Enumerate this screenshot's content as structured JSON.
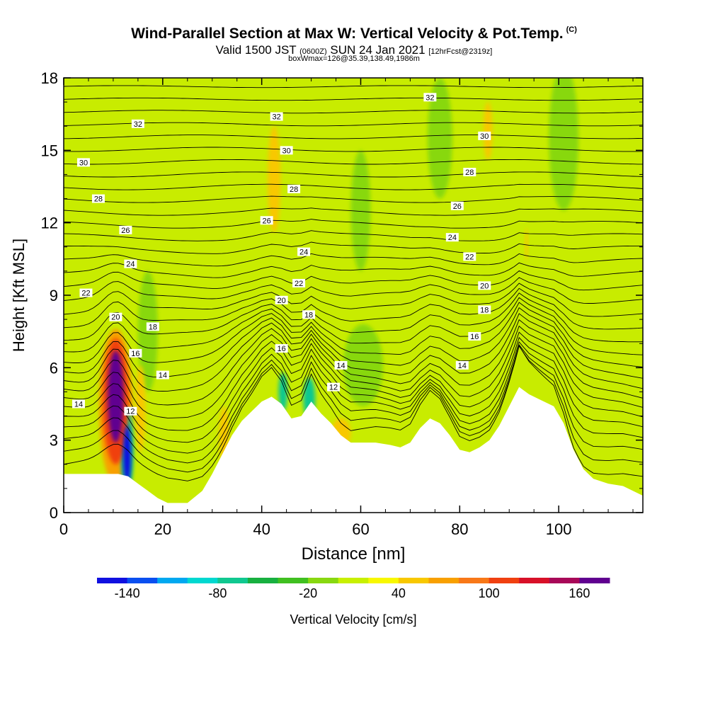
{
  "title": "Wind-Parallel Section at Max W: Vertical Velocity & Pot.Temp.",
  "title_mark": "(C)",
  "subtitle": {
    "valid": "Valid 1500 JST",
    "utc": "(0600Z)",
    "date": "SUN 24 Jan 2021",
    "fcst": "[12hrFcst@2319z]"
  },
  "subtitle2": "boxWmax=126@35.39,138.49,1986m",
  "chart_data": {
    "type": "heatmap",
    "xlabel": "Distance [nm]",
    "ylabel": "Height [Kft MSL]",
    "xlim": [
      0,
      117
    ],
    "ylim": [
      0,
      18
    ],
    "xticks": [
      0,
      20,
      40,
      60,
      80,
      100
    ],
    "yticks": [
      0,
      3,
      6,
      9,
      12,
      15,
      18
    ],
    "colorbar": {
      "label": "Vertical Velocity [cm/s]",
      "tick_labels": [
        "-140",
        "-80",
        "-20",
        "40",
        "100",
        "160"
      ],
      "tick_values": [
        -140,
        -80,
        -20,
        40,
        100,
        160
      ],
      "range": [
        -160,
        180
      ],
      "step": 20,
      "colors": [
        "#1010e0",
        "#0a4ff0",
        "#00a8f0",
        "#00d8d0",
        "#10c890",
        "#18b040",
        "#40c020",
        "#88d810",
        "#c8f000",
        "#f8f800",
        "#f8c800",
        "#f8a000",
        "#f87818",
        "#f04010",
        "#d81028",
        "#a80858",
        "#600090"
      ]
    },
    "background_color": "#c8ec00",
    "terrain": [
      [
        0,
        1.6
      ],
      [
        4,
        1.6
      ],
      [
        8,
        1.6
      ],
      [
        11,
        1.6
      ],
      [
        13,
        1.5
      ],
      [
        15,
        1.2
      ],
      [
        17,
        0.9
      ],
      [
        19,
        0.6
      ],
      [
        21,
        0.4
      ],
      [
        25,
        0.4
      ],
      [
        28,
        0.9
      ],
      [
        30,
        1.6
      ],
      [
        32,
        2.4
      ],
      [
        34,
        3.2
      ],
      [
        36,
        3.8
      ],
      [
        38,
        4.2
      ],
      [
        40,
        4.6
      ],
      [
        42,
        4.8
      ],
      [
        44,
        4.5
      ],
      [
        46,
        3.9
      ],
      [
        48,
        4.0
      ],
      [
        50,
        4.6
      ],
      [
        52,
        4.1
      ],
      [
        54,
        3.7
      ],
      [
        56,
        3.2
      ],
      [
        58,
        2.9
      ],
      [
        60,
        2.9
      ],
      [
        63,
        2.9
      ],
      [
        66,
        2.8
      ],
      [
        68,
        2.7
      ],
      [
        70,
        2.9
      ],
      [
        72,
        3.5
      ],
      [
        74,
        3.9
      ],
      [
        76,
        3.7
      ],
      [
        78,
        3.2
      ],
      [
        80,
        2.6
      ],
      [
        82,
        2.5
      ],
      [
        84,
        2.7
      ],
      [
        86,
        3.0
      ],
      [
        88,
        3.6
      ],
      [
        90,
        4.4
      ],
      [
        92,
        5.2
      ],
      [
        94,
        4.9
      ],
      [
        96,
        4.7
      ],
      [
        99,
        4.4
      ],
      [
        101,
        3.7
      ],
      [
        103,
        2.6
      ],
      [
        105,
        1.8
      ],
      [
        107,
        1.4
      ],
      [
        110,
        1.2
      ],
      [
        113,
        1.1
      ],
      [
        117,
        0.7
      ]
    ],
    "cells": [
      {
        "x": 10.5,
        "y": 4.8,
        "rx": 1.6,
        "ry": 1.9,
        "w": 180
      },
      {
        "x": 10.5,
        "y": 4.6,
        "rx": 2.6,
        "ry": 2.6,
        "w": 110
      },
      {
        "x": 10.5,
        "y": 4.4,
        "rx": 3.4,
        "ry": 3.2,
        "w": 60
      },
      {
        "x": 12.8,
        "y": 2.4,
        "rx": 0.8,
        "ry": 1.2,
        "w": -150
      },
      {
        "x": 12.8,
        "y": 2.6,
        "rx": 1.3,
        "ry": 1.8,
        "w": -70
      },
      {
        "x": 15.5,
        "y": 4.3,
        "rx": 1.0,
        "ry": 1.8,
        "w": 40
      },
      {
        "x": 17,
        "y": 7.5,
        "rx": 2,
        "ry": 2.5,
        "w": -20
      },
      {
        "x": 42.5,
        "y": 13.8,
        "rx": 1.3,
        "ry": 2.2,
        "w": 40
      },
      {
        "x": 85.7,
        "y": 15.8,
        "rx": 0.9,
        "ry": 1.2,
        "w": 40
      },
      {
        "x": 93.5,
        "y": 11.1,
        "rx": 0.3,
        "ry": 0.7,
        "w": 40
      },
      {
        "x": 49.6,
        "y": 4.7,
        "rx": 1.2,
        "ry": 0.9,
        "w": -80
      },
      {
        "x": 44.3,
        "y": 5.0,
        "rx": 0.9,
        "ry": 0.8,
        "w": -80
      },
      {
        "x": 60.5,
        "y": 6.1,
        "rx": 4,
        "ry": 1.7,
        "w": -20
      },
      {
        "x": 76,
        "y": 15.5,
        "rx": 2.5,
        "ry": 2.5,
        "w": -20
      },
      {
        "x": 101,
        "y": 15.5,
        "rx": 3,
        "ry": 3,
        "w": -20
      },
      {
        "x": 60,
        "y": 12.5,
        "rx": 2,
        "ry": 2.5,
        "w": -20
      },
      {
        "x": 32.4,
        "y": 3.2,
        "rx": 1.0,
        "ry": 1.2,
        "w": 40
      },
      {
        "x": 56,
        "y": 3.3,
        "rx": 2,
        "ry": 0.6,
        "w": 40
      }
    ],
    "theta_labels": [
      {
        "x": 15,
        "y": 16.1,
        "text": "32"
      },
      {
        "x": 43,
        "y": 16.4,
        "text": "32"
      },
      {
        "x": 74,
        "y": 17.2,
        "text": "32"
      },
      {
        "x": 4,
        "y": 14.5,
        "text": "30"
      },
      {
        "x": 45,
        "y": 15.0,
        "text": "30"
      },
      {
        "x": 85,
        "y": 15.6,
        "text": "30"
      },
      {
        "x": 7,
        "y": 13.0,
        "text": "28"
      },
      {
        "x": 46.5,
        "y": 13.4,
        "text": "28"
      },
      {
        "x": 82,
        "y": 14.1,
        "text": "28"
      },
      {
        "x": 12.5,
        "y": 11.7,
        "text": "26"
      },
      {
        "x": 41,
        "y": 12.1,
        "text": "26"
      },
      {
        "x": 79.5,
        "y": 12.7,
        "text": "26"
      },
      {
        "x": 13.5,
        "y": 10.3,
        "text": "24"
      },
      {
        "x": 48.5,
        "y": 10.8,
        "text": "24"
      },
      {
        "x": 78.5,
        "y": 11.4,
        "text": "24"
      },
      {
        "x": 4.5,
        "y": 9.1,
        "text": "22"
      },
      {
        "x": 47.5,
        "y": 9.5,
        "text": "22"
      },
      {
        "x": 82,
        "y": 10.6,
        "text": "22"
      },
      {
        "x": 10.5,
        "y": 8.1,
        "text": "20"
      },
      {
        "x": 44,
        "y": 8.8,
        "text": "20"
      },
      {
        "x": 85,
        "y": 9.4,
        "text": "20"
      },
      {
        "x": 18,
        "y": 7.7,
        "text": "18"
      },
      {
        "x": 49.5,
        "y": 8.2,
        "text": "18"
      },
      {
        "x": 85,
        "y": 8.4,
        "text": "18"
      },
      {
        "x": 14.5,
        "y": 6.6,
        "text": "16"
      },
      {
        "x": 44,
        "y": 6.8,
        "text": "16"
      },
      {
        "x": 83,
        "y": 7.3,
        "text": "16"
      },
      {
        "x": 20,
        "y": 5.7,
        "text": "14"
      },
      {
        "x": 56,
        "y": 6.1,
        "text": "14"
      },
      {
        "x": 80.5,
        "y": 6.1,
        "text": "14"
      },
      {
        "x": 3,
        "y": 4.5,
        "text": "14"
      },
      {
        "x": 54.5,
        "y": 5.2,
        "text": "12"
      },
      {
        "x": 13.5,
        "y": 4.2,
        "text": "12"
      }
    ]
  }
}
